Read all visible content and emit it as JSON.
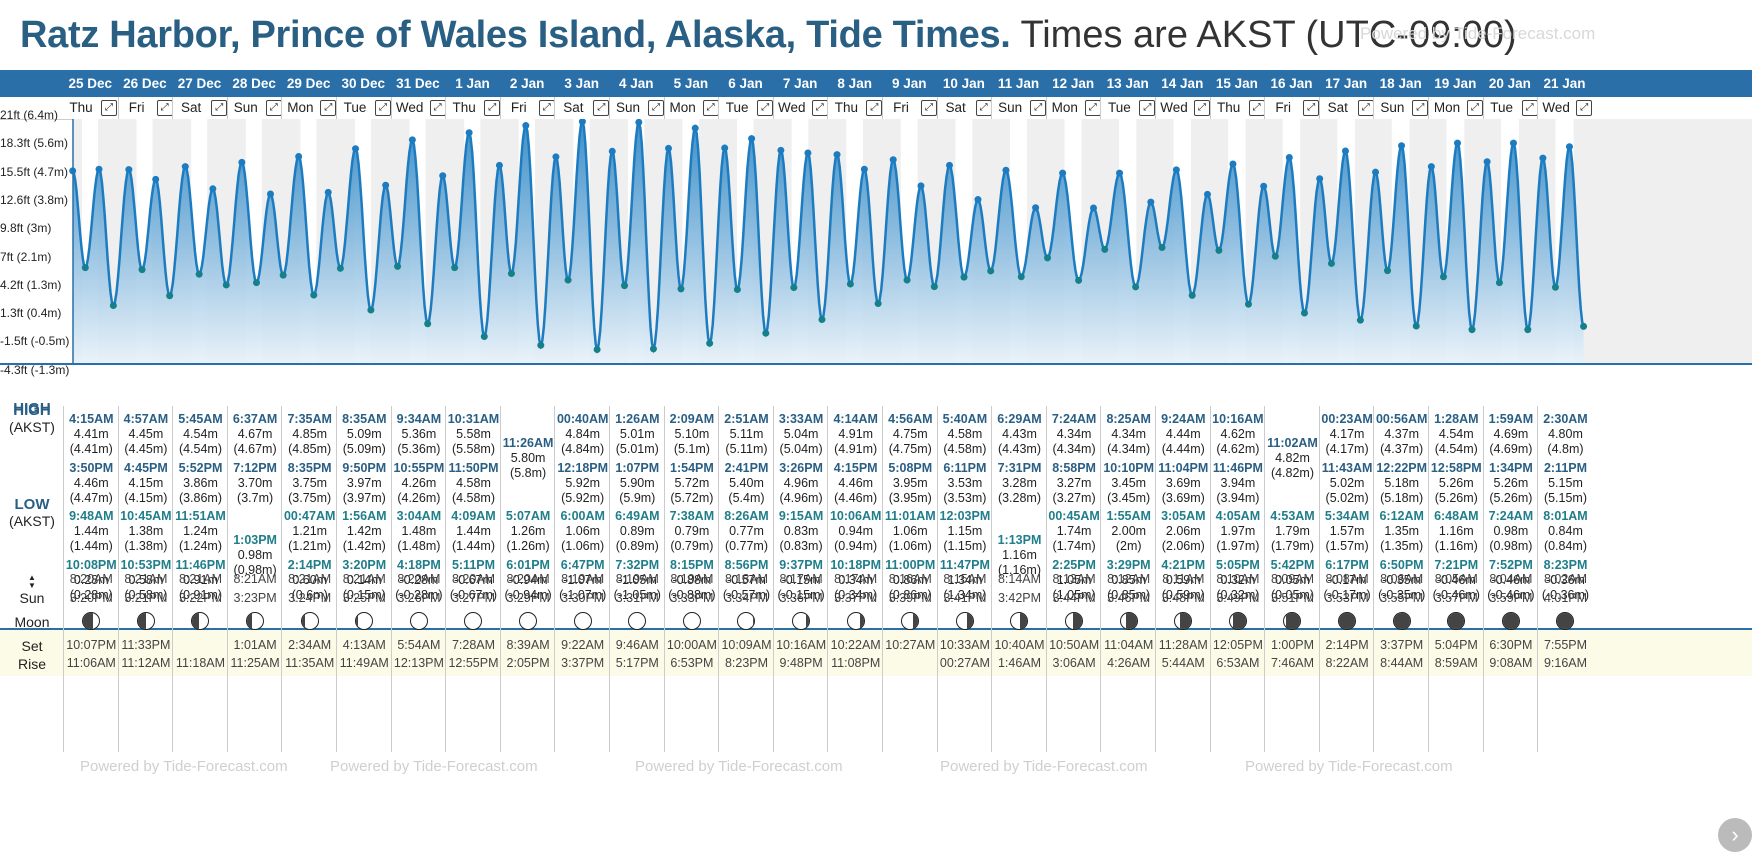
{
  "title": {
    "place": "Ratz Harbor, Prince of Wales Island, Alaska, Tide Times.",
    "tz": "Times are AKST (UTC-09:00)"
  },
  "watermark": "Powered by Tide-Forecast.com",
  "expand_glyph": "⤢",
  "next_glyph": "›",
  "row_labels": {
    "high": "HIGH",
    "high_tz": "(AKST)",
    "low": "LOW",
    "low_tz": "(AKST)",
    "sun": "Sun",
    "moon": "Moon",
    "set": "Set",
    "rise": "Rise"
  },
  "y_axis": [
    "21ft (6.4m)",
    "18.3ft (5.6m)",
    "15.5ft (4.7m)",
    "12.6ft (3.8m)",
    "9.8ft (3m)",
    "7ft (2.1m)",
    "4.2ft (1.3m)",
    "1.3ft (0.4m)",
    "-1.5ft (-0.5m)",
    "-4.3ft (-1.3m)"
  ],
  "colors": {
    "brand": "#2a6fa8",
    "title": "#2a5f84",
    "high": "#2a5f84",
    "low": "#1f7e8a",
    "sun_bg": "#fbfbe7"
  },
  "days": [
    {
      "date": "25 Dec",
      "dow": "Thu",
      "high": [
        [
          "4:15AM",
          "4.41m",
          "(4.41m)"
        ],
        [
          "3:50PM",
          "4.46m",
          "(4.47m)"
        ]
      ],
      "low": [
        [
          "9:48AM",
          "1.44m",
          "(1.44m)"
        ],
        [
          "10:08PM",
          "0.28m",
          "(0.28m)"
        ]
      ],
      "sunrise": "8:20AM",
      "sunset": "3:20PM",
      "moonset": "10:07PM",
      "moonrise": "11:06AM",
      "phase": 0.2
    },
    {
      "date": "26 Dec",
      "dow": "Fri",
      "high": [
        [
          "4:57AM",
          "4.45m",
          "(4.45m)"
        ],
        [
          "4:45PM",
          "4.15m",
          "(4.15m)"
        ]
      ],
      "low": [
        [
          "10:45AM",
          "1.38m",
          "(1.38m)"
        ],
        [
          "10:53PM",
          "0.58m",
          "(0.58m)"
        ]
      ],
      "sunrise": "8:21AM",
      "sunset": "3:21PM",
      "moonset": "11:33PM",
      "moonrise": "11:12AM",
      "phase": 0.25
    },
    {
      "date": "27 Dec",
      "dow": "Sat",
      "high": [
        [
          "5:45AM",
          "4.54m",
          "(4.54m)"
        ],
        [
          "5:52PM",
          "3.86m",
          "(3.86m)"
        ]
      ],
      "low": [
        [
          "11:51AM",
          "1.24m",
          "(1.24m)"
        ],
        [
          "11:46PM",
          "0.91m",
          "(0.91m)"
        ]
      ],
      "sunrise": "8:21AM",
      "sunset": "3:22PM",
      "moonset": "",
      "moonrise": "11:18AM",
      "phase": 0.3
    },
    {
      "date": "28 Dec",
      "dow": "Sun",
      "high": [
        [
          "6:37AM",
          "4.67m",
          "(4.67m)"
        ],
        [
          "7:12PM",
          "3.70m",
          "(3.7m)"
        ]
      ],
      "low": [
        [
          "1:03PM",
          "0.98m",
          "(0.98m)"
        ]
      ],
      "sunrise": "8:21AM",
      "sunset": "3:23PM",
      "moonset": "1:01AM",
      "moonrise": "11:25AM",
      "phase": 0.35
    },
    {
      "date": "29 Dec",
      "dow": "Mon",
      "high": [
        [
          "7:35AM",
          "4.85m",
          "(4.85m)"
        ],
        [
          "8:35PM",
          "3.75m",
          "(3.75m)"
        ]
      ],
      "low": [
        [
          "00:47AM",
          "1.21m",
          "(1.21m)"
        ],
        [
          "2:14PM",
          "0.60m",
          "(0.6m)"
        ]
      ],
      "sunrise": "8:21AM",
      "sunset": "3:24PM",
      "moonset": "2:34AM",
      "moonrise": "11:35AM",
      "phase": 0.4
    },
    {
      "date": "30 Dec",
      "dow": "Tue",
      "high": [
        [
          "8:35AM",
          "5.09m",
          "(5.09m)"
        ],
        [
          "9:50PM",
          "3.97m",
          "(3.97m)"
        ]
      ],
      "low": [
        [
          "1:56AM",
          "1.42m",
          "(1.42m)"
        ],
        [
          "3:20PM",
          "0.14m",
          "(0.15m)"
        ]
      ],
      "sunrise": "8:21AM",
      "sunset": "3:25PM",
      "moonset": "4:13AM",
      "moonrise": "11:49AM",
      "phase": 0.45
    },
    {
      "date": "31 Dec",
      "dow": "Wed",
      "high": [
        [
          "9:34AM",
          "5.36m",
          "(5.36m)"
        ],
        [
          "10:55PM",
          "4.26m",
          "(4.26m)"
        ]
      ],
      "low": [
        [
          "3:04AM",
          "1.48m",
          "(1.48m)"
        ],
        [
          "4:18PM",
          "-0.28m",
          "(-0.28m)"
        ]
      ],
      "sunrise": "8:20AM",
      "sunset": "3:26PM",
      "moonset": "5:54AM",
      "moonrise": "12:13PM",
      "phase": 0.5
    },
    {
      "date": "1 Jan",
      "dow": "Thu",
      "high": [
        [
          "10:31AM",
          "5.58m",
          "(5.58m)"
        ],
        [
          "11:50PM",
          "4.58m",
          "(4.58m)"
        ]
      ],
      "low": [
        [
          "4:09AM",
          "1.44m",
          "(1.44m)"
        ],
        [
          "5:11PM",
          "-0.67m",
          "(-0.67m)"
        ]
      ],
      "sunrise": "8:20AM",
      "sunset": "3:27PM",
      "moonset": "7:28AM",
      "moonrise": "12:55PM",
      "phase": 0.5
    },
    {
      "date": "2 Jan",
      "dow": "Fri",
      "high": [
        [
          "11:26AM",
          "5.80m",
          "(5.8m)"
        ]
      ],
      "low": [
        [
          "5:07AM",
          "1.26m",
          "(1.26m)"
        ],
        [
          "6:01PM",
          "-0.94m",
          "(-0.94m)"
        ]
      ],
      "sunrise": "8:20AM",
      "sunset": "3:29PM",
      "moonset": "8:39AM",
      "moonrise": "2:05PM",
      "phase": 0.5
    },
    {
      "date": "3 Jan",
      "dow": "Sat",
      "high": [
        [
          "00:40AM",
          "4.84m",
          "(4.84m)"
        ],
        [
          "12:18PM",
          "5.92m",
          "(5.92m)"
        ]
      ],
      "low": [
        [
          "6:00AM",
          "1.06m",
          "(1.06m)"
        ],
        [
          "6:47PM",
          "-1.07m",
          "(-1.07m)"
        ]
      ],
      "sunrise": "8:19AM",
      "sunset": "3:30PM",
      "moonset": "9:22AM",
      "moonrise": "3:37PM",
      "phase": 0.5
    },
    {
      "date": "4 Jan",
      "dow": "Sun",
      "high": [
        [
          "1:26AM",
          "5.01m",
          "(5.01m)"
        ],
        [
          "1:07PM",
          "5.90m",
          "(5.9m)"
        ]
      ],
      "low": [
        [
          "6:49AM",
          "0.89m",
          "(0.89m)"
        ],
        [
          "7:32PM",
          "-1.05m",
          "(-1.05m)"
        ]
      ],
      "sunrise": "8:19AM",
      "sunset": "3:31PM",
      "moonset": "9:46AM",
      "moonrise": "5:17PM",
      "phase": 0.5
    },
    {
      "date": "5 Jan",
      "dow": "Mon",
      "high": [
        [
          "2:09AM",
          "5.10m",
          "(5.1m)"
        ],
        [
          "1:54PM",
          "5.72m",
          "(5.72m)"
        ]
      ],
      "low": [
        [
          "7:38AM",
          "0.79m",
          "(0.79m)"
        ],
        [
          "8:15PM",
          "-0.88m",
          "(-0.88m)"
        ]
      ],
      "sunrise": "8:19AM",
      "sunset": "3:33PM",
      "moonset": "10:00AM",
      "moonrise": "6:53PM",
      "phase": 0.5
    },
    {
      "date": "6 Jan",
      "dow": "Tue",
      "high": [
        [
          "2:51AM",
          "5.11m",
          "(5.11m)"
        ],
        [
          "2:41PM",
          "5.40m",
          "(5.4m)"
        ]
      ],
      "low": [
        [
          "8:26AM",
          "0.77m",
          "(0.77m)"
        ],
        [
          "8:56PM",
          "-0.57m",
          "(-0.57m)"
        ]
      ],
      "sunrise": "8:18AM",
      "sunset": "3:34PM",
      "moonset": "10:09AM",
      "moonrise": "8:23PM",
      "phase": 0.55
    },
    {
      "date": "7 Jan",
      "dow": "Wed",
      "high": [
        [
          "3:33AM",
          "5.04m",
          "(5.04m)"
        ],
        [
          "3:26PM",
          "4.96m",
          "(4.96m)"
        ]
      ],
      "low": [
        [
          "9:15AM",
          "0.83m",
          "(0.83m)"
        ],
        [
          "9:37PM",
          "-0.15m",
          "(-0.15m)"
        ]
      ],
      "sunrise": "8:17AM",
      "sunset": "3:36PM",
      "moonset": "10:16AM",
      "moonrise": "9:48PM",
      "phase": 0.6
    },
    {
      "date": "8 Jan",
      "dow": "Thu",
      "high": [
        [
          "4:14AM",
          "4.91m",
          "(4.91m)"
        ],
        [
          "4:15PM",
          "4.46m",
          "(4.46m)"
        ]
      ],
      "low": [
        [
          "10:06AM",
          "0.94m",
          "(0.94m)"
        ],
        [
          "10:18PM",
          "0.34m",
          "(0.34m)"
        ]
      ],
      "sunrise": "8:17AM",
      "sunset": "3:37PM",
      "moonset": "10:22AM",
      "moonrise": "11:08PM",
      "phase": 0.62
    },
    {
      "date": "9 Jan",
      "dow": "Fri",
      "high": [
        [
          "4:56AM",
          "4.75m",
          "(4.75m)"
        ],
        [
          "5:08PM",
          "3.95m",
          "(3.95m)"
        ]
      ],
      "low": [
        [
          "11:01AM",
          "1.06m",
          "(1.06m)"
        ],
        [
          "11:00PM",
          "0.86m",
          "(0.86m)"
        ]
      ],
      "sunrise": "8:16AM",
      "sunset": "3:39PM",
      "moonset": "10:27AM",
      "moonrise": "",
      "phase": 0.66
    },
    {
      "date": "10 Jan",
      "dow": "Sat",
      "high": [
        [
          "5:40AM",
          "4.58m",
          "(4.58m)"
        ],
        [
          "6:11PM",
          "3.53m",
          "(3.53m)"
        ]
      ],
      "low": [
        [
          "12:03PM",
          "1.15m",
          "(1.15m)"
        ],
        [
          "11:47PM",
          "1.34m",
          "(1.34m)"
        ]
      ],
      "sunrise": "8:15AM",
      "sunset": "3:41PM",
      "moonset": "10:33AM",
      "moonrise": "00:27AM",
      "phase": 0.7
    },
    {
      "date": "11 Jan",
      "dow": "Sun",
      "high": [
        [
          "6:29AM",
          "4.43m",
          "(4.43m)"
        ],
        [
          "7:31PM",
          "3.28m",
          "(3.28m)"
        ]
      ],
      "low": [
        [
          "1:13PM",
          "1.16m",
          "(1.16m)"
        ]
      ],
      "sunrise": "8:14AM",
      "sunset": "3:42PM",
      "moonset": "10:40AM",
      "moonrise": "1:46AM",
      "phase": 0.74
    },
    {
      "date": "12 Jan",
      "dow": "Mon",
      "high": [
        [
          "7:24AM",
          "4.34m",
          "(4.34m)"
        ],
        [
          "8:58PM",
          "3.27m",
          "(3.27m)"
        ]
      ],
      "low": [
        [
          "00:45AM",
          "1.74m",
          "(1.74m)"
        ],
        [
          "2:25PM",
          "1.05m",
          "(1.05m)"
        ]
      ],
      "sunrise": "8:13AM",
      "sunset": "3:44PM",
      "moonset": "10:50AM",
      "moonrise": "3:06AM",
      "phase": 0.78
    },
    {
      "date": "13 Jan",
      "dow": "Tue",
      "high": [
        [
          "8:25AM",
          "4.34m",
          "(4.34m)"
        ],
        [
          "10:10PM",
          "3.45m",
          "(3.45m)"
        ]
      ],
      "low": [
        [
          "1:55AM",
          "2.00m",
          "(2m)"
        ],
        [
          "3:29PM",
          "0.85m",
          "(0.85m)"
        ]
      ],
      "sunrise": "8:12AM",
      "sunset": "3:46PM",
      "moonset": "11:04AM",
      "moonrise": "4:26AM",
      "phase": 0.82
    },
    {
      "date": "14 Jan",
      "dow": "Wed",
      "high": [
        [
          "9:24AM",
          "4.44m",
          "(4.44m)"
        ],
        [
          "11:04PM",
          "3.69m",
          "(3.69m)"
        ]
      ],
      "low": [
        [
          "3:05AM",
          "2.06m",
          "(2.06m)"
        ],
        [
          "4:21PM",
          "0.59m",
          "(0.59m)"
        ]
      ],
      "sunrise": "8:11AM",
      "sunset": "3:48PM",
      "moonset": "11:28AM",
      "moonrise": "5:44AM",
      "phase": 0.86
    },
    {
      "date": "15 Jan",
      "dow": "Thu",
      "high": [
        [
          "10:16AM",
          "4.62m",
          "(4.62m)"
        ],
        [
          "11:46PM",
          "3.94m",
          "(3.94m)"
        ]
      ],
      "low": [
        [
          "4:05AM",
          "1.97m",
          "(1.97m)"
        ],
        [
          "5:05PM",
          "0.32m",
          "(0.32m)"
        ]
      ],
      "sunrise": "8:10AM",
      "sunset": "3:49PM",
      "moonset": "12:05PM",
      "moonrise": "6:53AM",
      "phase": 0.9
    },
    {
      "date": "16 Jan",
      "dow": "Fri",
      "high": [
        [
          "11:02AM",
          "4.82m",
          "(4.82m)"
        ]
      ],
      "low": [
        [
          "4:53AM",
          "1.79m",
          "(1.79m)"
        ],
        [
          "5:42PM",
          "0.05m",
          "(0.05m)"
        ]
      ],
      "sunrise": "8:09AM",
      "sunset": "3:51PM",
      "moonset": "1:00PM",
      "moonrise": "7:46AM",
      "phase": 0.95
    },
    {
      "date": "17 Jan",
      "dow": "Sat",
      "high": [
        [
          "00:23AM",
          "4.17m",
          "(4.17m)"
        ],
        [
          "11:43AM",
          "5.02m",
          "(5.02m)"
        ]
      ],
      "low": [
        [
          "5:34AM",
          "1.57m",
          "(1.57m)"
        ],
        [
          "6:17PM",
          "-0.17m",
          "(-0.17m)"
        ]
      ],
      "sunrise": "8:08AM",
      "sunset": "3:53PM",
      "moonset": "2:14PM",
      "moonrise": "8:22AM",
      "phase": 1.0
    },
    {
      "date": "18 Jan",
      "dow": "Sun",
      "high": [
        [
          "00:56AM",
          "4.37m",
          "(4.37m)"
        ],
        [
          "12:22PM",
          "5.18m",
          "(5.18m)"
        ]
      ],
      "low": [
        [
          "6:12AM",
          "1.35m",
          "(1.35m)"
        ],
        [
          "6:50PM",
          "-0.35m",
          "(-0.35m)"
        ]
      ],
      "sunrise": "8:06AM",
      "sunset": "3:55PM",
      "moonset": "3:37PM",
      "moonrise": "8:44AM",
      "phase": 1.0
    },
    {
      "date": "19 Jan",
      "dow": "Mon",
      "high": [
        [
          "1:28AM",
          "4.54m",
          "(4.54m)"
        ],
        [
          "12:58PM",
          "5.26m",
          "(5.26m)"
        ]
      ],
      "low": [
        [
          "6:48AM",
          "1.16m",
          "(1.16m)"
        ],
        [
          "7:21PM",
          "-0.46m",
          "(-0.46m)"
        ]
      ],
      "sunrise": "8:05AM",
      "sunset": "3:57PM",
      "moonset": "5:04PM",
      "moonrise": "8:59AM",
      "phase": 1.0
    },
    {
      "date": "20 Jan",
      "dow": "Tue",
      "high": [
        [
          "1:59AM",
          "4.69m",
          "(4.69m)"
        ],
        [
          "1:34PM",
          "5.26m",
          "(5.26m)"
        ]
      ],
      "low": [
        [
          "7:24AM",
          "0.98m",
          "(0.98m)"
        ],
        [
          "7:52PM",
          "-0.46m",
          "(-0.46m)"
        ]
      ],
      "sunrise": "8:04AM",
      "sunset": "3:59PM",
      "moonset": "6:30PM",
      "moonrise": "9:08AM",
      "phase": 1.0
    },
    {
      "date": "21 Jan",
      "dow": "Wed",
      "high": [
        [
          "2:30AM",
          "4.80m",
          "(4.8m)"
        ],
        [
          "2:11PM",
          "5.15m",
          "(5.15m)"
        ]
      ],
      "low": [
        [
          "8:01AM",
          "0.84m",
          "(0.84m)"
        ],
        [
          "8:23PM",
          "-0.36m",
          "(-0.36m)"
        ]
      ],
      "sunrise": "8:02AM",
      "sunset": "4:01PM",
      "moonset": "7:55PM",
      "moonrise": "9:16AM",
      "phase": 1.0
    }
  ]
}
